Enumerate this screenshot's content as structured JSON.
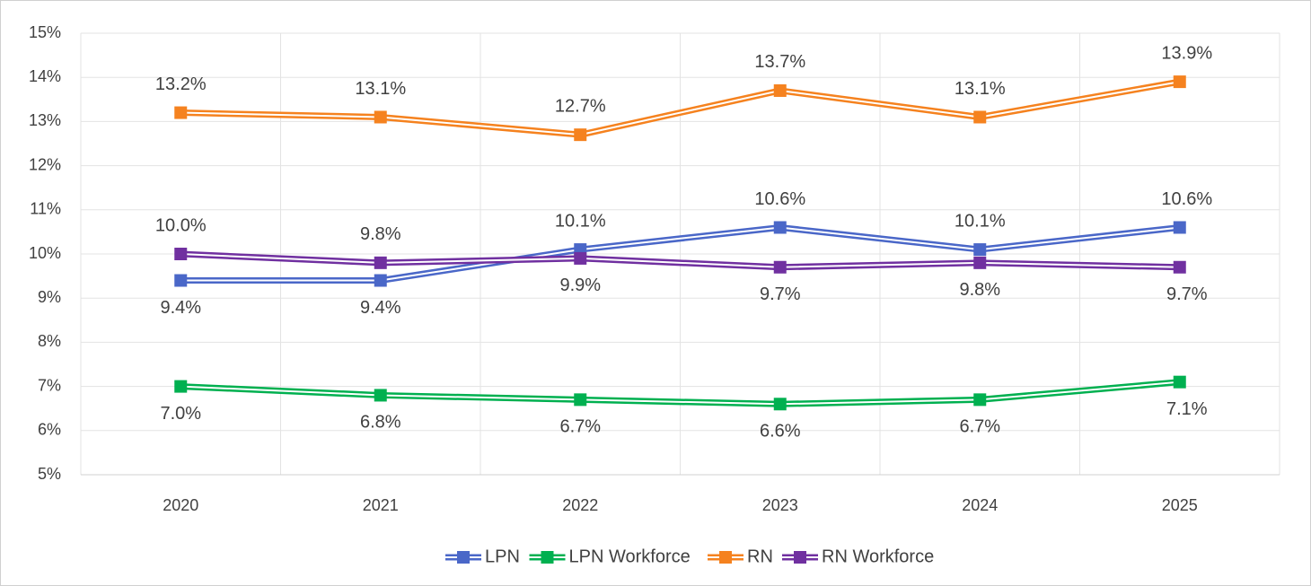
{
  "chart_data": {
    "type": "line",
    "categories": [
      "2020",
      "2021",
      "2022",
      "2023",
      "2024",
      "2025"
    ],
    "series": [
      {
        "name": "LPN",
        "color": "#4a67c8",
        "values": [
          9.4,
          9.4,
          10.1,
          10.6,
          10.1,
          10.6
        ],
        "value_labels": [
          "9.4%",
          "9.4%",
          "10.1%",
          "10.6%",
          "10.1%",
          "10.6%"
        ]
      },
      {
        "name": "LPN Workforce",
        "color": "#00b050",
        "values": [
          7.0,
          6.8,
          6.7,
          6.6,
          6.7,
          7.1
        ],
        "value_labels": [
          "7.0%",
          "6.8%",
          "6.7%",
          "6.6%",
          "6.7%",
          "7.1%"
        ]
      },
      {
        "name": "RN",
        "color": "#f5821f",
        "values": [
          13.2,
          13.1,
          12.7,
          13.7,
          13.1,
          13.9
        ],
        "value_labels": [
          "13.2%",
          "13.1%",
          "12.7%",
          "13.7%",
          "13.1%",
          "13.9%"
        ]
      },
      {
        "name": "RN Workforce",
        "color": "#7030a0",
        "values": [
          10.0,
          9.8,
          9.9,
          9.7,
          9.8,
          9.7
        ],
        "value_labels": [
          "10.0%",
          "9.8%",
          "9.9%",
          "9.7%",
          "9.8%",
          "9.7%"
        ]
      }
    ],
    "ylim": [
      5,
      15
    ],
    "yticks": [
      {
        "value": 5,
        "label": "5%"
      },
      {
        "value": 6,
        "label": "6%"
      },
      {
        "value": 7,
        "label": "7%"
      },
      {
        "value": 8,
        "label": "8%"
      },
      {
        "value": 9,
        "label": "9%"
      },
      {
        "value": 10,
        "label": "10%"
      },
      {
        "value": 11,
        "label": "11%"
      },
      {
        "value": 12,
        "label": "12%"
      },
      {
        "value": 13,
        "label": "13%"
      },
      {
        "value": 14,
        "label": "14%"
      },
      {
        "value": 15,
        "label": "15%"
      }
    ],
    "grid": true,
    "legend": "bottom"
  }
}
